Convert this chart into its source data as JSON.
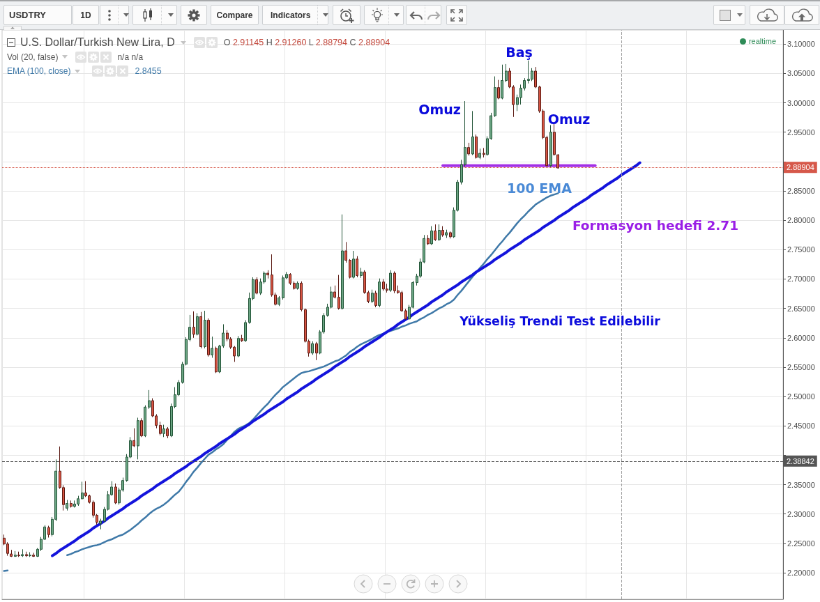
{
  "chart_data": {
    "type": "candlestick",
    "title": "U.S. Dollar/Turkish New Lira, D",
    "subtitle": "O 2.91145 H 2.91260 L 2.88794 C 2.88904",
    "categories": [
      null,
      null,
      null,
      null,
      null,
      null,
      null,
      null,
      null,
      null,
      null,
      null,
      null,
      null,
      null,
      null,
      null,
      null,
      null,
      null,
      null,
      null,
      null,
      null,
      null,
      null,
      null,
      null,
      null,
      null,
      null,
      null,
      null,
      null,
      null,
      null,
      null,
      null,
      null,
      null,
      null,
      null,
      null,
      null,
      null,
      null,
      null,
      null,
      null,
      null,
      null,
      null,
      null,
      null,
      null,
      null,
      null,
      null,
      null,
      null,
      null,
      null,
      null,
      null,
      null,
      null,
      null,
      null,
      null,
      null,
      null,
      null,
      null,
      null,
      null,
      null,
      null,
      null,
      null,
      null,
      null,
      null,
      null,
      null,
      null,
      null,
      null,
      null,
      null,
      null,
      null,
      null,
      null,
      null,
      null,
      null,
      null,
      null,
      null,
      null,
      null,
      null,
      null,
      null,
      null,
      null,
      null,
      null,
      null,
      null,
      null,
      null,
      null,
      null,
      null,
      null,
      null,
      null,
      null,
      null,
      null,
      null,
      null,
      null,
      null,
      null,
      null,
      null,
      null,
      null,
      null,
      null,
      null,
      null,
      null,
      null,
      null,
      null,
      null,
      null,
      null,
      null,
      null,
      null,
      null,
      null,
      null,
      null,
      null,
      null,
      null,
      null,
      null,
      null,
      null,
      null,
      null,
      null,
      null,
      null,
      null,
      null,
      null,
      null,
      null,
      null,
      null,
      null,
      null,
      null,
      null,
      null,
      null,
      null,
      null,
      null,
      null,
      null,
      null,
      null,
      null,
      null,
      null,
      null,
      null,
      null,
      null,
      null,
      null,
      null,
      null,
      null,
      null,
      null,
      null,
      null,
      null,
      null,
      null,
      null,
      null,
      null,
      null,
      null,
      null,
      null,
      null,
      null,
      null,
      null
    ],
    "ohlc": [
      [
        2.259,
        2.265,
        2.247,
        2.249
      ],
      [
        2.249,
        2.252,
        2.229,
        2.233
      ],
      [
        2.232,
        2.239,
        2.227,
        2.228
      ],
      [
        2.228,
        2.237,
        2.227,
        2.23
      ],
      [
        2.23,
        2.236,
        2.227,
        2.229
      ],
      [
        2.229,
        2.24,
        2.227,
        2.231
      ],
      [
        2.231,
        2.236,
        2.227,
        2.229
      ],
      [
        2.229,
        2.235,
        2.227,
        2.23
      ],
      [
        2.23,
        2.234,
        2.227,
        2.228
      ],
      [
        2.228,
        2.242,
        2.227,
        2.24
      ],
      [
        2.24,
        2.261,
        2.237,
        2.257
      ],
      [
        2.257,
        2.281,
        2.256,
        2.278
      ],
      [
        2.277,
        2.28,
        2.26,
        2.265
      ],
      [
        2.265,
        2.295,
        2.262,
        2.291
      ],
      [
        2.291,
        2.393,
        2.288,
        2.373
      ],
      [
        2.373,
        2.415,
        2.343,
        2.345
      ],
      [
        2.345,
        2.349,
        2.306,
        2.316
      ],
      [
        2.31,
        2.324,
        2.306,
        2.318
      ],
      [
        2.318,
        2.323,
        2.311,
        2.313
      ],
      [
        2.313,
        2.323,
        2.311,
        2.317
      ],
      [
        2.317,
        2.331,
        2.314,
        2.326
      ],
      [
        2.326,
        2.355,
        2.325,
        2.336
      ],
      [
        2.336,
        2.356,
        2.329,
        2.331
      ],
      [
        2.331,
        2.333,
        2.318,
        2.32
      ],
      [
        2.32,
        2.323,
        2.294,
        2.298
      ],
      [
        2.298,
        2.3,
        2.282,
        2.286
      ],
      [
        2.284,
        2.292,
        2.274,
        2.288
      ],
      [
        2.288,
        2.312,
        2.286,
        2.308
      ],
      [
        2.308,
        2.339,
        2.306,
        2.333
      ],
      [
        2.333,
        2.356,
        2.331,
        2.346
      ],
      [
        2.346,
        2.352,
        2.317,
        2.319
      ],
      [
        2.319,
        2.345,
        2.316,
        2.341
      ],
      [
        2.341,
        2.362,
        2.338,
        2.357
      ],
      [
        2.357,
        2.402,
        2.355,
        2.397
      ],
      [
        2.397,
        2.431,
        2.395,
        2.425
      ],
      [
        2.425,
        2.446,
        2.414,
        2.416
      ],
      [
        2.416,
        2.464,
        2.393,
        2.459
      ],
      [
        2.459,
        2.463,
        2.431,
        2.433
      ],
      [
        2.433,
        2.485,
        2.431,
        2.482
      ],
      [
        2.482,
        2.511,
        2.479,
        2.493
      ],
      [
        2.493,
        2.497,
        2.465,
        2.467
      ],
      [
        2.467,
        2.47,
        2.446,
        2.451
      ],
      [
        2.451,
        2.457,
        2.434,
        2.437
      ],
      [
        2.437,
        2.452,
        2.431,
        2.445
      ],
      [
        2.445,
        2.448,
        2.429,
        2.433
      ],
      [
        2.433,
        2.488,
        2.431,
        2.483
      ],
      [
        2.483,
        2.516,
        2.48,
        2.503
      ],
      [
        2.503,
        2.528,
        2.501,
        2.524
      ],
      [
        2.524,
        2.559,
        2.522,
        2.555
      ],
      [
        2.555,
        2.601,
        2.553,
        2.597
      ],
      [
        2.597,
        2.639,
        2.594,
        2.618
      ],
      [
        2.618,
        2.645,
        2.6,
        2.606
      ],
      [
        2.606,
        2.642,
        2.604,
        2.636
      ],
      [
        2.636,
        2.644,
        2.582,
        2.585
      ],
      [
        2.585,
        2.646,
        2.582,
        2.63
      ],
      [
        2.63,
        2.633,
        2.568,
        2.571
      ],
      [
        2.571,
        2.602,
        2.566,
        2.582
      ],
      [
        2.582,
        2.585,
        2.54,
        2.542
      ],
      [
        2.542,
        2.588,
        2.54,
        2.586
      ],
      [
        2.586,
        2.623,
        2.583,
        2.608
      ],
      [
        2.608,
        2.613,
        2.594,
        2.598
      ],
      [
        2.598,
        2.601,
        2.581,
        2.584
      ],
      [
        2.584,
        2.586,
        2.559,
        2.569
      ],
      [
        2.569,
        2.603,
        2.567,
        2.599
      ],
      [
        2.599,
        2.605,
        2.593,
        2.595
      ],
      [
        2.595,
        2.63,
        2.593,
        2.626
      ],
      [
        2.626,
        2.677,
        2.624,
        2.667
      ],
      [
        2.667,
        2.703,
        2.664,
        2.699
      ],
      [
        2.699,
        2.703,
        2.674,
        2.676
      ],
      [
        2.676,
        2.701,
        2.673,
        2.695
      ],
      [
        2.695,
        2.713,
        2.692,
        2.71
      ],
      [
        2.71,
        2.715,
        2.701,
        2.707
      ],
      [
        2.707,
        2.742,
        2.67,
        2.673
      ],
      [
        2.673,
        2.677,
        2.655,
        2.657
      ],
      [
        2.657,
        2.671,
        2.654,
        2.668
      ],
      [
        2.668,
        2.706,
        2.665,
        2.702
      ],
      [
        2.702,
        2.712,
        2.7,
        2.708
      ],
      [
        2.708,
        2.71,
        2.69,
        2.693
      ],
      [
        2.693,
        2.696,
        2.682,
        2.684
      ],
      [
        2.684,
        2.696,
        2.682,
        2.693
      ],
      [
        2.693,
        2.696,
        2.645,
        2.648
      ],
      [
        2.648,
        2.65,
        2.592,
        2.594
      ],
      [
        2.594,
        2.597,
        2.568,
        2.574
      ],
      [
        2.574,
        2.594,
        2.571,
        2.59
      ],
      [
        2.59,
        2.593,
        2.562,
        2.574
      ],
      [
        2.574,
        2.613,
        2.572,
        2.61
      ],
      [
        2.61,
        2.642,
        2.607,
        2.638
      ],
      [
        2.638,
        2.658,
        2.636,
        2.652
      ],
      [
        2.652,
        2.687,
        2.65,
        2.678
      ],
      [
        2.678,
        2.689,
        2.667,
        2.669
      ],
      [
        2.669,
        2.707,
        2.648,
        2.65
      ],
      [
        2.65,
        2.81,
        2.648,
        2.748
      ],
      [
        2.748,
        2.763,
        2.728,
        2.732
      ],
      [
        2.732,
        2.734,
        2.701,
        2.703
      ],
      [
        2.703,
        2.748,
        2.701,
        2.734
      ],
      [
        2.734,
        2.739,
        2.703,
        2.706
      ],
      [
        2.706,
        2.719,
        2.702,
        2.712
      ],
      [
        2.712,
        2.715,
        2.675,
        2.677
      ],
      [
        2.677,
        2.68,
        2.659,
        2.662
      ],
      [
        2.662,
        2.682,
        2.659,
        2.676
      ],
      [
        2.676,
        2.68,
        2.652,
        2.655
      ],
      [
        2.655,
        2.701,
        2.652,
        2.695
      ],
      [
        2.695,
        2.7,
        2.68,
        2.683
      ],
      [
        2.683,
        2.692,
        2.677,
        2.681
      ],
      [
        2.681,
        2.715,
        2.678,
        2.71
      ],
      [
        2.71,
        2.713,
        2.676,
        2.68
      ],
      [
        2.68,
        2.689,
        2.675,
        2.677
      ],
      [
        2.677,
        2.68,
        2.644,
        2.646
      ],
      [
        2.646,
        2.649,
        2.631,
        2.632
      ],
      [
        2.632,
        2.656,
        2.632,
        2.652
      ],
      [
        2.652,
        2.697,
        2.65,
        2.694
      ],
      [
        2.694,
        2.709,
        2.689,
        2.705
      ],
      [
        2.705,
        2.735,
        2.702,
        2.729
      ],
      [
        2.729,
        2.775,
        2.727,
        2.769
      ],
      [
        2.769,
        2.775,
        2.758,
        2.76
      ],
      [
        2.76,
        2.79,
        2.758,
        2.782
      ],
      [
        2.782,
        2.793,
        2.765,
        2.767
      ],
      [
        2.767,
        2.793,
        2.765,
        2.783
      ],
      [
        2.783,
        2.79,
        2.772,
        2.775
      ],
      [
        2.775,
        2.784,
        2.77,
        2.779
      ],
      [
        2.779,
        2.781,
        2.769,
        2.772
      ],
      [
        2.772,
        2.822,
        2.77,
        2.817
      ],
      [
        2.817,
        2.869,
        2.815,
        2.865
      ],
      [
        2.865,
        2.903,
        2.861,
        2.895
      ],
      [
        2.895,
        3.003,
        2.891,
        2.924
      ],
      [
        2.924,
        2.932,
        2.91,
        2.913
      ],
      [
        2.913,
        2.986,
        2.911,
        2.942
      ],
      [
        2.942,
        2.946,
        2.905,
        2.907
      ],
      [
        2.907,
        2.922,
        2.904,
        2.914
      ],
      [
        2.914,
        2.923,
        2.907,
        2.912
      ],
      [
        2.912,
        2.943,
        2.91,
        2.939
      ],
      [
        2.939,
        2.983,
        2.937,
        2.978
      ],
      [
        2.978,
        3.045,
        2.976,
        3.026
      ],
      [
        3.026,
        3.039,
        3.006,
        3.008
      ],
      [
        3.008,
        3.065,
        3.006,
        3.038
      ],
      [
        3.038,
        3.066,
        3.035,
        3.054
      ],
      [
        3.054,
        3.059,
        3.025,
        3.027
      ],
      [
        3.027,
        3.03,
        2.976,
        2.997
      ],
      [
        2.997,
        3.014,
        2.986,
        3.009
      ],
      [
        3.009,
        3.031,
        2.997,
        3.025
      ],
      [
        3.025,
        3.042,
        3.021,
        3.038
      ],
      [
        3.038,
        3.072,
        3.033,
        3.04
      ],
      [
        3.04,
        3.059,
        3.037,
        3.054
      ],
      [
        3.054,
        3.061,
        3.025,
        3.027
      ],
      [
        3.027,
        3.029,
        2.983,
        2.986
      ],
      [
        2.986,
        2.989,
        2.938,
        2.941
      ],
      [
        2.941,
        2.944,
        2.891,
        2.893
      ],
      [
        2.893,
        2.962,
        2.891,
        2.95
      ],
      [
        2.95,
        2.964,
        2.91,
        2.912
      ],
      [
        2.91145,
        2.9126,
        2.88794,
        2.88904
      ],
      null,
      null,
      null,
      null,
      null,
      null,
      null,
      null,
      null,
      null,
      null,
      null,
      null,
      null,
      null,
      null,
      null,
      null,
      null,
      null,
      null,
      null,
      null,
      null,
      null,
      null,
      null,
      null,
      null,
      null,
      null,
      null,
      null,
      null,
      null,
      null,
      null,
      null,
      null,
      null,
      null,
      null,
      null,
      null,
      null,
      null,
      null,
      null,
      null,
      null,
      null,
      null,
      null,
      null,
      null,
      null,
      null,
      null,
      null,
      null
    ],
    "series": [
      {
        "name": "EMA (100, close)",
        "type": "line",
        "color": "#3f79a8",
        "values": [
          2.203,
          2.204,
          null,
          null,
          null,
          null,
          null,
          null,
          null,
          null,
          null,
          null,
          null,
          null,
          null,
          null,
          null,
          2.23,
          2.232,
          2.235,
          2.237,
          2.24,
          2.242,
          2.244,
          2.246,
          2.247,
          2.249,
          2.252,
          2.255,
          2.257,
          2.26,
          2.263,
          2.265,
          2.269,
          2.273,
          2.278,
          2.283,
          2.289,
          2.294,
          2.3,
          2.305,
          2.309,
          2.312,
          2.316,
          2.321,
          2.327,
          2.333,
          2.338,
          2.346,
          2.355,
          2.363,
          2.372,
          2.379,
          2.387,
          2.394,
          2.401,
          2.405,
          2.41,
          2.414,
          2.419,
          2.426,
          2.433,
          2.44,
          2.445,
          2.448,
          2.451,
          2.455,
          2.461,
          2.468,
          2.475,
          2.482,
          2.488,
          2.496,
          2.503,
          2.509,
          2.516,
          2.521,
          2.526,
          2.531,
          2.536,
          2.54,
          2.542,
          2.543,
          2.545,
          2.547,
          2.549,
          2.551,
          2.554,
          2.557,
          2.56,
          2.562,
          2.566,
          2.57,
          2.576,
          2.58,
          2.585,
          2.589,
          2.592,
          2.595,
          2.598,
          2.602,
          2.605,
          2.607,
          2.61,
          2.612,
          2.614,
          2.616,
          2.619,
          2.621,
          2.624,
          2.626,
          2.628,
          2.632,
          2.635,
          2.639,
          2.642,
          2.646,
          2.65,
          2.653,
          2.657,
          2.66,
          2.665,
          2.673,
          2.68,
          2.688,
          2.696,
          2.704,
          2.711,
          2.719,
          2.726,
          2.734,
          2.741,
          2.749,
          2.757,
          2.764,
          2.772,
          2.779,
          2.787,
          2.795,
          2.802,
          2.808,
          2.815,
          2.821,
          2.827,
          2.831,
          2.835,
          2.839,
          2.842,
          2.844,
          2.846,
          null,
          null,
          null,
          null,
          null,
          null,
          null,
          null,
          null,
          null,
          null,
          null,
          null,
          null,
          null,
          null,
          null,
          null,
          null,
          null,
          null,
          null,
          null,
          null,
          null,
          null,
          null,
          null,
          null,
          null,
          null,
          null,
          null,
          null,
          null,
          null,
          null,
          null,
          null,
          null,
          null,
          null,
          null,
          null,
          null,
          null,
          null,
          null,
          null,
          null,
          null,
          null,
          null,
          null,
          null,
          null,
          null,
          null,
          null,
          null
        ]
      },
      {
        "type": "line",
        "color": "#1414dc",
        "values": [
          null,
          null,
          null,
          null,
          null,
          null,
          null,
          null,
          null,
          null,
          null,
          null,
          null,
          2.229,
          2.233,
          2.238,
          2.242,
          2.246,
          2.25,
          2.254,
          2.259,
          2.263,
          2.267,
          2.271,
          2.276,
          2.28,
          2.284,
          2.288,
          2.293,
          2.297,
          2.301,
          2.305,
          2.309,
          2.314,
          2.318,
          2.322,
          2.326,
          2.331,
          2.335,
          2.339,
          2.343,
          2.348,
          2.352,
          2.356,
          2.36,
          2.364,
          2.369,
          2.373,
          2.377,
          2.381,
          2.386,
          2.39,
          2.394,
          2.398,
          2.403,
          2.407,
          2.411,
          2.415,
          2.42,
          2.424,
          2.428,
          2.432,
          2.436,
          2.441,
          2.445,
          2.449,
          2.453,
          2.458,
          2.462,
          2.466,
          2.47,
          2.475,
          2.479,
          2.483,
          2.487,
          2.491,
          2.496,
          2.5,
          2.504,
          2.508,
          2.513,
          2.517,
          2.521,
          2.525,
          2.53,
          2.534,
          2.538,
          2.542,
          2.546,
          2.551,
          2.555,
          2.559,
          2.563,
          2.568,
          2.572,
          2.576,
          2.58,
          2.585,
          2.589,
          2.593,
          2.597,
          2.601,
          2.606,
          2.61,
          2.614,
          2.618,
          2.623,
          2.627,
          2.631,
          2.635,
          2.64,
          2.644,
          2.648,
          2.652,
          2.656,
          2.661,
          2.665,
          2.669,
          2.673,
          2.678,
          2.682,
          2.686,
          2.69,
          2.695,
          2.699,
          2.703,
          2.707,
          2.712,
          2.716,
          2.72,
          2.724,
          2.728,
          2.733,
          2.737,
          2.741,
          2.745,
          2.75,
          2.754,
          2.758,
          2.762,
          2.767,
          2.771,
          2.775,
          2.779,
          2.783,
          2.788,
          2.792,
          2.796,
          2.8,
          2.805,
          2.809,
          2.813,
          2.817,
          2.822,
          2.826,
          2.83,
          2.834,
          2.838,
          2.843,
          2.847,
          2.851,
          2.855,
          2.86,
          2.864,
          2.868,
          2.872,
          2.877,
          2.881,
          2.885,
          2.889,
          2.893,
          2.898,
          null,
          null,
          null,
          null,
          null,
          null,
          null,
          null,
          null,
          null,
          null,
          null,
          null,
          null,
          null,
          null,
          null,
          null,
          null,
          null,
          null,
          null,
          null,
          null,
          null,
          null,
          null,
          null,
          null,
          null,
          null,
          null,
          null,
          null,
          null,
          null,
          null,
          null
        ]
      },
      {
        "type": "line",
        "color": "#a330e6",
        "values": [
          null,
          null,
          null,
          null,
          null,
          null,
          null,
          null,
          null,
          null,
          null,
          null,
          null,
          null,
          null,
          null,
          null,
          null,
          null,
          null,
          null,
          null,
          null,
          null,
          null,
          null,
          null,
          null,
          null,
          null,
          null,
          null,
          null,
          null,
          null,
          null,
          null,
          null,
          null,
          null,
          null,
          null,
          null,
          null,
          null,
          null,
          null,
          null,
          null,
          null,
          null,
          null,
          null,
          null,
          null,
          null,
          null,
          null,
          null,
          null,
          null,
          null,
          null,
          null,
          null,
          null,
          null,
          null,
          null,
          null,
          null,
          null,
          null,
          null,
          null,
          null,
          null,
          null,
          null,
          null,
          null,
          null,
          null,
          null,
          null,
          null,
          null,
          null,
          null,
          null,
          null,
          null,
          null,
          null,
          null,
          null,
          null,
          null,
          null,
          null,
          null,
          null,
          null,
          null,
          null,
          null,
          null,
          null,
          null,
          null,
          null,
          null,
          null,
          null,
          null,
          null,
          null,
          null,
          2.893,
          2.893,
          2.893,
          2.893,
          2.893,
          2.893,
          2.893,
          2.893,
          2.893,
          2.893,
          2.893,
          2.893,
          2.893,
          2.893,
          2.893,
          2.893,
          2.893,
          2.893,
          2.893,
          2.893,
          2.893,
          2.893,
          2.893,
          2.893,
          2.893,
          2.893,
          2.893,
          2.893,
          2.893,
          2.893,
          2.893,
          2.893,
          2.893,
          2.893,
          2.893,
          2.893,
          2.893,
          2.893,
          2.893,
          2.893,
          2.893,
          2.893,
          null,
          null,
          null,
          null,
          null,
          null,
          null,
          null,
          null,
          null,
          null,
          null,
          null,
          null,
          null,
          null,
          null,
          null,
          null,
          null,
          null,
          null,
          null,
          null,
          null,
          null,
          null,
          null,
          null,
          null,
          null,
          null,
          null,
          null,
          null,
          null,
          null,
          null,
          null,
          null,
          null,
          null,
          null,
          null,
          null,
          null,
          null,
          null,
          null,
          null
        ]
      }
    ],
    "ylim": [
      2.155,
      3.124
    ],
    "yticks": [
      {
        "value": 2.2,
        "label": "2.20000"
      },
      {
        "value": 2.25,
        "label": "2.25000"
      },
      {
        "value": 2.3,
        "label": "2.30000"
      },
      {
        "value": 2.35,
        "label": "2.35000"
      },
      {
        "value": 2.4,
        "label": null
      },
      {
        "value": 2.45,
        "label": "2.45000"
      },
      {
        "value": 2.5,
        "label": "2.50000"
      },
      {
        "value": 2.55,
        "label": "2.55000"
      },
      {
        "value": 2.6,
        "label": "2.60000"
      },
      {
        "value": 2.65,
        "label": "2.65000"
      },
      {
        "value": 2.7,
        "label": "2.70000"
      },
      {
        "value": 2.75,
        "label": "2.75000"
      },
      {
        "value": 2.8,
        "label": "2.80000"
      },
      {
        "value": 2.85,
        "label": "2.85000"
      },
      {
        "value": 2.9,
        "label": null
      },
      {
        "value": 2.95,
        "label": "2.95000"
      },
      {
        "value": 3,
        "label": "3.00000"
      },
      {
        "value": 3.05,
        "label": "3.05000"
      },
      {
        "value": 3.1,
        "label": "3.10000"
      }
    ],
    "ref_lines": [
      {
        "axis": "y",
        "value": 2.88904,
        "label": "2.88904",
        "color": "#d6584a",
        "line_style": "dotted"
      },
      {
        "axis": "y",
        "value": 2.38842,
        "label": "2.38842",
        "color": "#555555",
        "line_style": "dashed"
      }
    ],
    "annotations": [
      "USDTRY",
      "1D",
      "Compare",
      "Indicators",
      "Vol (20, false)",
      "n/a n/a",
      "2.8455",
      "realtime",
      "Baş",
      "Omuz",
      "Omuz",
      "100 EMA",
      "Formasyon hedefi 2.71",
      "Yükseliş Trendi Test Edilebilir"
    ],
    "grid": true,
    "legend": "top left",
    "tick_labels": "y",
    "marker": "none"
  }
}
